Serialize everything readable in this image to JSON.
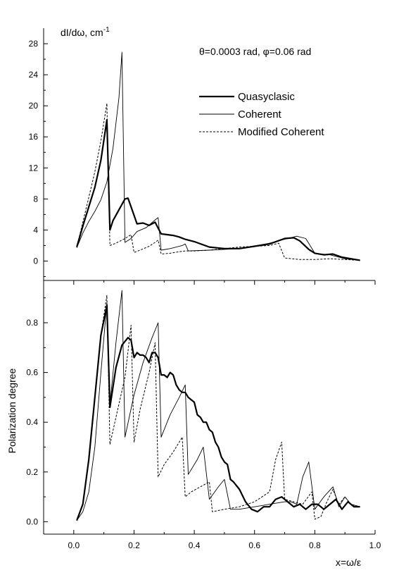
{
  "chart_data": [
    {
      "type": "line",
      "panel": "top",
      "title": "",
      "annotation": "θ=0.0003 rad, φ=0.06 rad",
      "ylabel": "dI/dω, cm",
      "ylabel_sup": "-1",
      "xlabel": "",
      "xlim": [
        -0.1,
        1.0
      ],
      "ylim": [
        -2.5,
        30
      ],
      "yticks": [
        0,
        4,
        8,
        12,
        16,
        20,
        24,
        28
      ],
      "ytick_labels": [
        "0",
        "4",
        "8",
        "12",
        "16",
        "20",
        "24",
        "28"
      ],
      "grid": false,
      "legend_position": "upper-right",
      "legend": [
        "Quasyclasic",
        "Coherent",
        "Modified Coherent"
      ],
      "series": [
        {
          "name": "Quasyclasic",
          "style": "thick-solid",
          "x": [
            0.01,
            0.03,
            0.05,
            0.07,
            0.09,
            0.11,
            0.12,
            0.13,
            0.15,
            0.17,
            0.18,
            0.19,
            0.21,
            0.23,
            0.25,
            0.27,
            0.29,
            0.31,
            0.33,
            0.35,
            0.37,
            0.4,
            0.45,
            0.5,
            0.55,
            0.6,
            0.65,
            0.7,
            0.73,
            0.75,
            0.78,
            0.8,
            0.83,
            0.86,
            0.89,
            0.92,
            0.95
          ],
          "y": [
            1.8,
            4.5,
            7.0,
            9.5,
            13.0,
            18.2,
            4.0,
            5.2,
            6.6,
            8.0,
            8.1,
            7.0,
            4.8,
            4.9,
            4.6,
            5.0,
            3.5,
            3.4,
            3.3,
            3.1,
            2.8,
            2.5,
            1.8,
            1.6,
            1.6,
            1.9,
            2.2,
            2.9,
            3.0,
            2.6,
            1.5,
            1.0,
            0.8,
            0.9,
            0.5,
            0.3,
            0.1
          ]
        },
        {
          "name": "Coherent",
          "style": "thin-solid",
          "x": [
            0.01,
            0.03,
            0.05,
            0.07,
            0.09,
            0.11,
            0.13,
            0.15,
            0.16,
            0.17,
            0.19,
            0.21,
            0.24,
            0.27,
            0.28,
            0.29,
            0.32,
            0.36,
            0.37,
            0.38,
            0.45,
            0.55,
            0.65,
            0.7,
            0.74,
            0.77,
            0.8,
            0.85,
            0.9,
            0.95
          ],
          "y": [
            1.7,
            3.6,
            5.1,
            6.4,
            7.9,
            10.2,
            14.5,
            21.0,
            26.9,
            2.4,
            2.9,
            3.8,
            4.3,
            5.3,
            5.6,
            1.4,
            1.6,
            2.0,
            2.2,
            1.3,
            1.4,
            1.6,
            2.3,
            2.8,
            3.2,
            2.9,
            1.0,
            0.8,
            0.3,
            0.1
          ]
        },
        {
          "name": "Modified Coherent",
          "style": "dashed",
          "x": [
            0.01,
            0.03,
            0.05,
            0.07,
            0.09,
            0.11,
            0.12,
            0.14,
            0.17,
            0.19,
            0.2,
            0.22,
            0.25,
            0.27,
            0.28,
            0.29,
            0.32,
            0.35,
            0.37,
            0.4,
            0.45,
            0.5,
            0.55,
            0.6,
            0.65,
            0.68,
            0.7,
            0.75,
            0.8,
            0.85,
            0.9,
            0.95
          ],
          "y": [
            1.8,
            5.0,
            8.2,
            11.5,
            15.5,
            20.3,
            2.0,
            2.3,
            2.9,
            3.4,
            1.1,
            1.4,
            1.9,
            2.4,
            2.7,
            0.9,
            1.0,
            1.2,
            1.3,
            1.3,
            1.4,
            1.6,
            1.8,
            1.9,
            2.0,
            2.3,
            0.4,
            0.2,
            0.2,
            0.3,
            0.2,
            0.1
          ]
        }
      ]
    },
    {
      "type": "line",
      "panel": "bottom",
      "title": "",
      "ylabel": "Polarization degree",
      "xlabel": "x=ω/ε",
      "xlim": [
        -0.1,
        1.0
      ],
      "ylim": [
        -0.05,
        0.97
      ],
      "xticks": [
        0.0,
        0.2,
        0.4,
        0.6,
        0.8,
        1.0
      ],
      "xtick_labels": [
        "0.0",
        "0.2",
        "0.4",
        "0.6",
        "0.8",
        "1.0"
      ],
      "yticks": [
        0.0,
        0.2,
        0.4,
        0.6,
        0.8
      ],
      "ytick_labels": [
        "0.0",
        "0.2",
        "0.4",
        "0.6",
        "0.8"
      ],
      "grid": false,
      "series": [
        {
          "name": "Quasyclasic",
          "style": "thick-solid",
          "x": [
            0.01,
            0.03,
            0.05,
            0.07,
            0.09,
            0.11,
            0.12,
            0.14,
            0.16,
            0.18,
            0.19,
            0.2,
            0.21,
            0.22,
            0.23,
            0.24,
            0.25,
            0.26,
            0.27,
            0.28,
            0.29,
            0.3,
            0.31,
            0.32,
            0.33,
            0.34,
            0.35,
            0.36,
            0.37,
            0.38,
            0.39,
            0.4,
            0.41,
            0.42,
            0.43,
            0.44,
            0.45,
            0.46,
            0.47,
            0.48,
            0.49,
            0.5,
            0.51,
            0.52,
            0.53,
            0.55,
            0.57,
            0.59,
            0.61,
            0.63,
            0.65,
            0.67,
            0.69,
            0.71,
            0.73,
            0.75,
            0.77,
            0.79,
            0.81,
            0.83,
            0.85,
            0.87,
            0.89,
            0.91,
            0.93,
            0.95
          ],
          "y": [
            0.005,
            0.07,
            0.25,
            0.5,
            0.75,
            0.87,
            0.46,
            0.62,
            0.71,
            0.74,
            0.73,
            0.66,
            0.68,
            0.67,
            0.67,
            0.66,
            0.64,
            0.68,
            0.68,
            0.66,
            0.59,
            0.59,
            0.58,
            0.6,
            0.59,
            0.55,
            0.53,
            0.52,
            0.52,
            0.5,
            0.49,
            0.48,
            0.43,
            0.42,
            0.4,
            0.4,
            0.37,
            0.36,
            0.32,
            0.3,
            0.26,
            0.24,
            0.23,
            0.17,
            0.16,
            0.13,
            0.08,
            0.05,
            0.04,
            0.06,
            0.06,
            0.09,
            0.1,
            0.08,
            0.06,
            0.07,
            0.05,
            0.07,
            0.07,
            0.05,
            0.07,
            0.09,
            0.05,
            0.08,
            0.06,
            0.06
          ]
        },
        {
          "name": "Coherent",
          "style": "thin-solid",
          "x": [
            0.01,
            0.03,
            0.05,
            0.07,
            0.09,
            0.11,
            0.12,
            0.14,
            0.16,
            0.17,
            0.2,
            0.23,
            0.26,
            0.28,
            0.29,
            0.32,
            0.35,
            0.37,
            0.38,
            0.41,
            0.43,
            0.45,
            0.48,
            0.5,
            0.52,
            0.55,
            0.6,
            0.65,
            0.7,
            0.72,
            0.74,
            0.76,
            0.78,
            0.8,
            0.83,
            0.86,
            0.88,
            0.9,
            0.92,
            0.95
          ],
          "y": [
            0.005,
            0.04,
            0.12,
            0.3,
            0.6,
            0.88,
            0.47,
            0.72,
            0.93,
            0.34,
            0.51,
            0.64,
            0.74,
            0.8,
            0.34,
            0.43,
            0.5,
            0.55,
            0.19,
            0.25,
            0.3,
            0.09,
            0.14,
            0.17,
            0.05,
            0.05,
            0.06,
            0.07,
            0.08,
            0.08,
            0.07,
            0.18,
            0.24,
            0.05,
            0.1,
            0.14,
            0.06,
            0.1,
            0.07,
            0.06
          ]
        },
        {
          "name": "Modified Coherent",
          "style": "dashed",
          "x": [
            0.01,
            0.03,
            0.05,
            0.07,
            0.09,
            0.11,
            0.12,
            0.14,
            0.17,
            0.19,
            0.2,
            0.22,
            0.25,
            0.27,
            0.28,
            0.3,
            0.33,
            0.36,
            0.37,
            0.39,
            0.42,
            0.45,
            0.46,
            0.5,
            0.55,
            0.6,
            0.65,
            0.67,
            0.69,
            0.7,
            0.73,
            0.76,
            0.79,
            0.8,
            0.82,
            0.84,
            0.86,
            0.88,
            0.9,
            0.92,
            0.95
          ],
          "y": [
            0.005,
            0.07,
            0.25,
            0.5,
            0.75,
            0.91,
            0.31,
            0.42,
            0.58,
            0.79,
            0.32,
            0.45,
            0.6,
            0.72,
            0.18,
            0.23,
            0.28,
            0.34,
            0.1,
            0.12,
            0.14,
            0.16,
            0.04,
            0.05,
            0.06,
            0.08,
            0.12,
            0.25,
            0.32,
            0.09,
            0.08,
            0.07,
            0.12,
            0.01,
            0.02,
            0.08,
            0.13,
            0.07,
            0.1,
            0.07,
            0.06
          ]
        }
      ]
    }
  ]
}
